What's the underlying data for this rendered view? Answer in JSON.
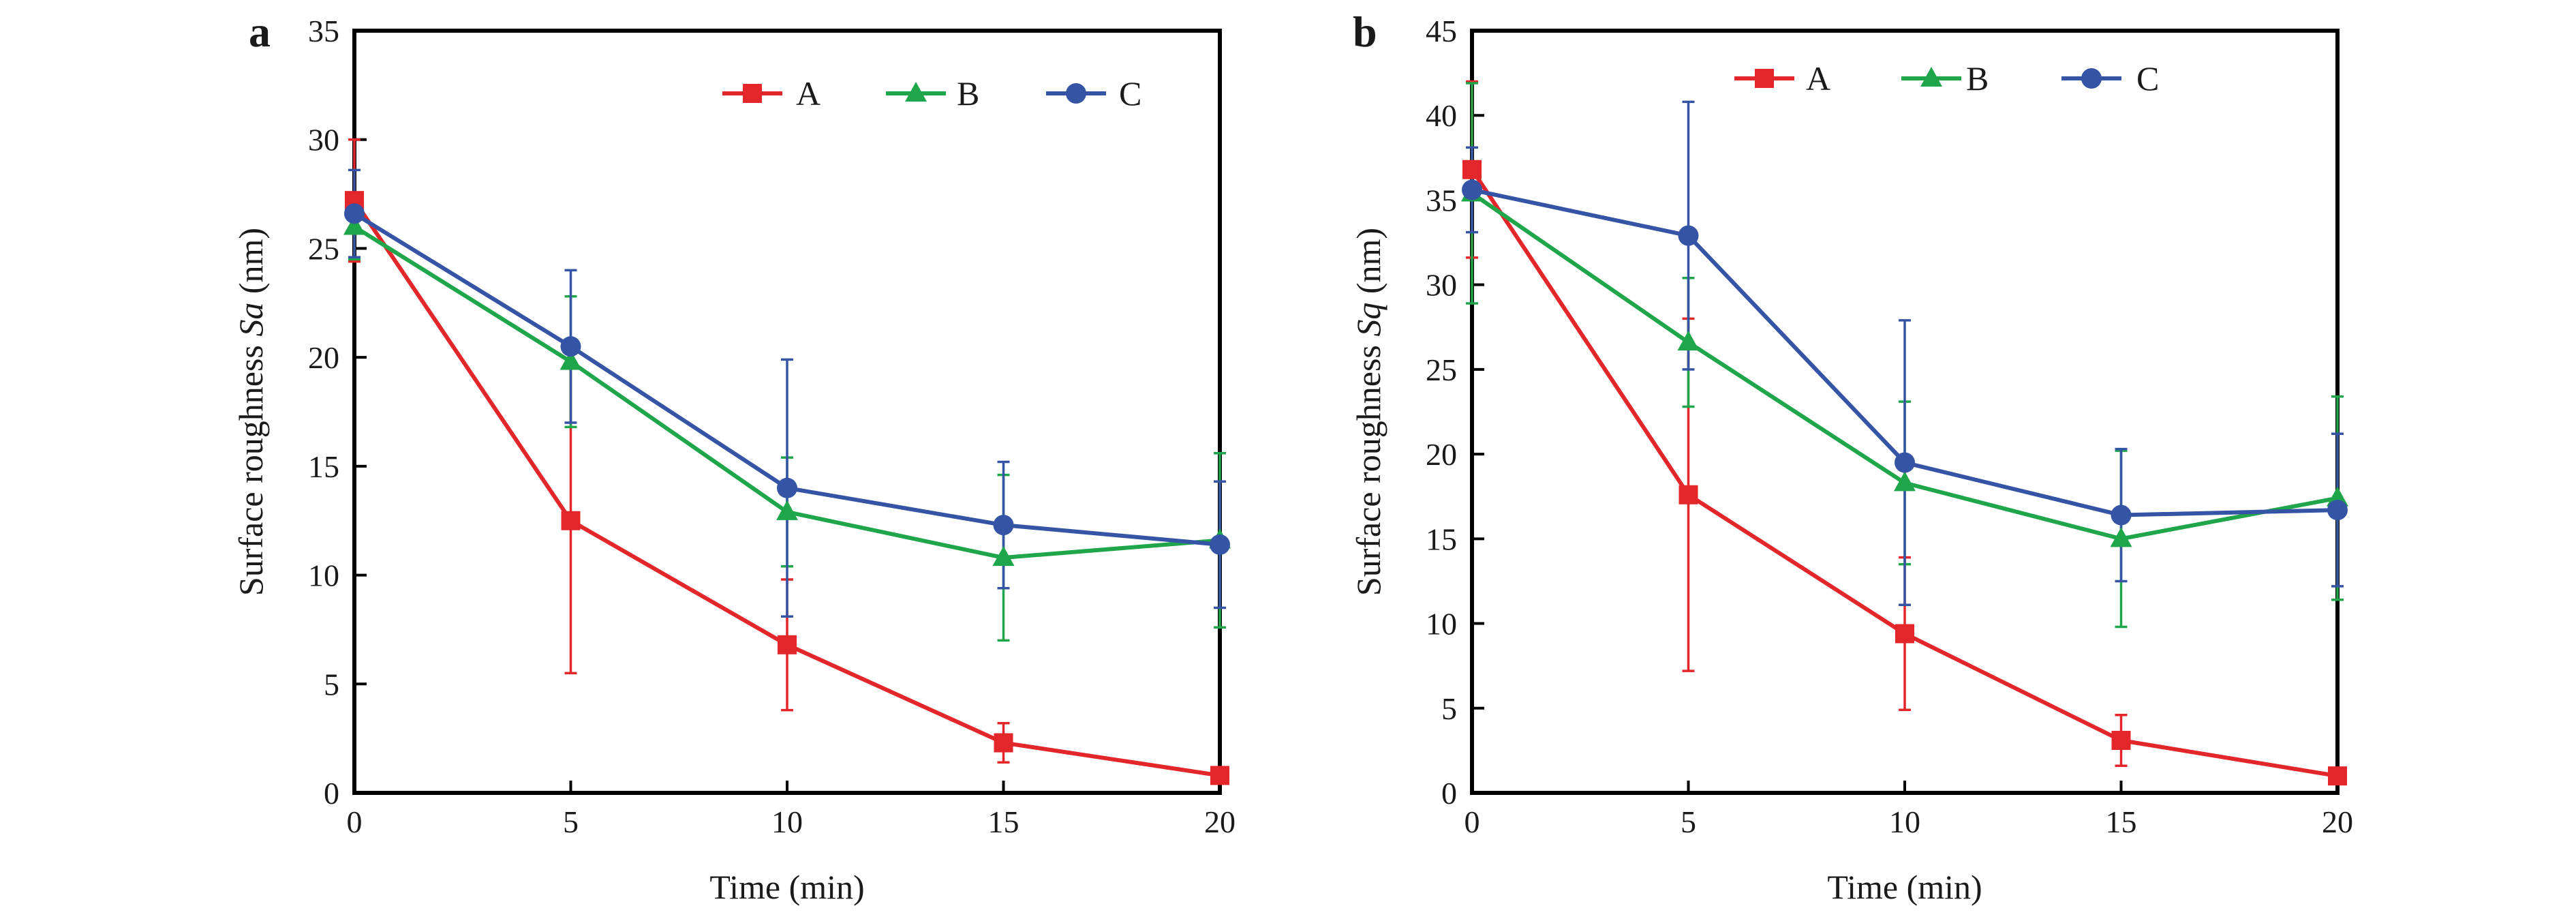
{
  "colors": {
    "A": "#e3262a",
    "B": "#1fa64a",
    "C": "#3654a5",
    "axis": "#000000"
  },
  "chart_data": [
    {
      "type": "line",
      "panel_label": "a",
      "xlabel": "Time (min)",
      "ylabel_prefix": "Surface roughness ",
      "ylabel_italic": "Sa",
      "ylabel_suffix": " (nm)",
      "xlim": [
        0,
        20
      ],
      "ylim": [
        0,
        35
      ],
      "xticks": [
        "0",
        "5",
        "10",
        "15",
        "20"
      ],
      "yticks": [
        "0",
        "5",
        "10",
        "15",
        "20",
        "25",
        "30",
        "35"
      ],
      "legend_position": "top",
      "grid": false,
      "x": [
        0,
        5,
        10,
        15,
        20
      ],
      "series": [
        {
          "name": "A",
          "marker": "square",
          "values": [
            27.2,
            12.5,
            6.8,
            2.3,
            0.8
          ],
          "errors": [
            2.8,
            7.0,
            3.0,
            0.9,
            0.2
          ]
        },
        {
          "name": "B",
          "marker": "triangle",
          "values": [
            26.0,
            19.8,
            12.9,
            10.8,
            11.6
          ],
          "errors": [
            1.5,
            3.0,
            2.5,
            3.8,
            4.0
          ]
        },
        {
          "name": "C",
          "marker": "circle",
          "values": [
            26.6,
            20.5,
            14.0,
            12.3,
            11.4
          ],
          "errors": [
            2.0,
            3.5,
            5.9,
            2.9,
            2.9
          ]
        }
      ]
    },
    {
      "type": "line",
      "panel_label": "b",
      "xlabel": "Time (min)",
      "ylabel_prefix": "Surface roughness ",
      "ylabel_italic": "Sq",
      "ylabel_suffix": " (nm)",
      "xlim": [
        0,
        20
      ],
      "ylim": [
        0,
        45
      ],
      "xticks": [
        "0",
        "5",
        "10",
        "15",
        "20"
      ],
      "yticks": [
        "0",
        "5",
        "10",
        "15",
        "20",
        "25",
        "30",
        "35",
        "40",
        "45"
      ],
      "legend_position": "top",
      "grid": false,
      "x": [
        0,
        5,
        10,
        15,
        20
      ],
      "series": [
        {
          "name": "A",
          "marker": "square",
          "values": [
            36.8,
            17.6,
            9.4,
            3.1,
            1.0
          ],
          "errors": [
            5.2,
            10.4,
            4.5,
            1.5,
            0.3
          ]
        },
        {
          "name": "B",
          "marker": "triangle",
          "values": [
            35.4,
            26.6,
            18.3,
            15.0,
            17.4
          ],
          "errors": [
            6.5,
            3.8,
            4.8,
            5.2,
            6.0
          ]
        },
        {
          "name": "C",
          "marker": "circle",
          "values": [
            35.6,
            32.9,
            19.5,
            16.4,
            16.7
          ],
          "errors": [
            2.5,
            7.9,
            8.4,
            3.9,
            4.5
          ]
        }
      ]
    }
  ]
}
